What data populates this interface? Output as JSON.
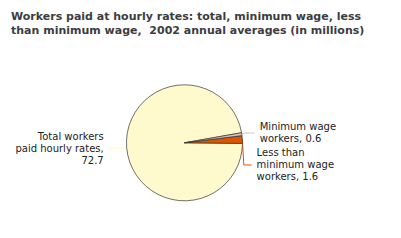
{
  "chart_data": {
    "type": "pie",
    "title": "Workers paid at hourly rates: total, minimum wage, less\nthan minimum wage,  2002 annual averages (in millions)",
    "categories": [
      "Total workers\npaid hourly rates,\n72.7",
      "Less than\nminimum wage\nworkers, 1.6",
      "Minimum wage\nworkers, 0.6"
    ],
    "values": [
      72.7,
      1.6,
      0.6
    ],
    "colors": [
      "#FFFACD",
      "#E05500",
      "#C8C8C8"
    ],
    "data_labels": true
  }
}
